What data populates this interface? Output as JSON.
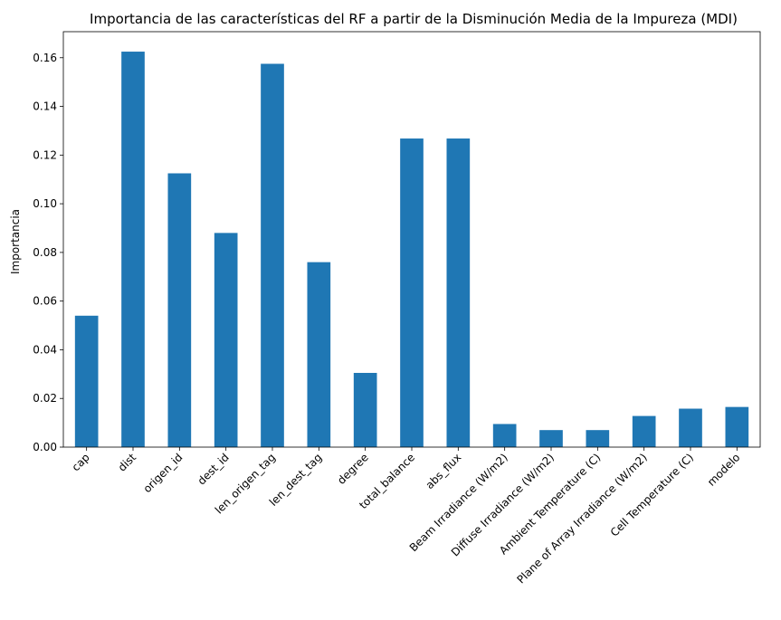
{
  "chart_data": {
    "type": "bar",
    "title": "Importancia de las características del RF a partir de la Disminución Media de la Impureza (MDI)",
    "xlabel": "",
    "ylabel": "Importancia",
    "categories": [
      "cap",
      "dist",
      "origen_id",
      "dest_id",
      "len_origen_tag",
      "len_dest_tag",
      "degree",
      "total_balance",
      "abs_flux",
      "Beam Irradiance (W/m2)",
      "Diffuse Irradiance (W/m2)",
      "Ambient Temperature (C)",
      "Plane of Array Irradiance (W/m2)",
      "Cell Temperature (C)",
      "modelo"
    ],
    "values": [
      0.054,
      0.1625,
      0.1125,
      0.088,
      0.1575,
      0.076,
      0.0305,
      0.1268,
      0.1268,
      0.0095,
      0.007,
      0.007,
      0.0128,
      0.0158,
      0.0165
    ],
    "ylim": [
      0,
      0.1707
    ],
    "yticks": [
      0.0,
      0.02,
      0.04,
      0.06,
      0.08,
      0.1,
      0.12,
      0.14,
      0.16
    ],
    "ytick_labels": [
      "0.00",
      "0.02",
      "0.04",
      "0.06",
      "0.08",
      "0.10",
      "0.12",
      "0.14",
      "0.16"
    ],
    "bar_color": "#1f77b4",
    "grid": false,
    "legend": "none"
  }
}
